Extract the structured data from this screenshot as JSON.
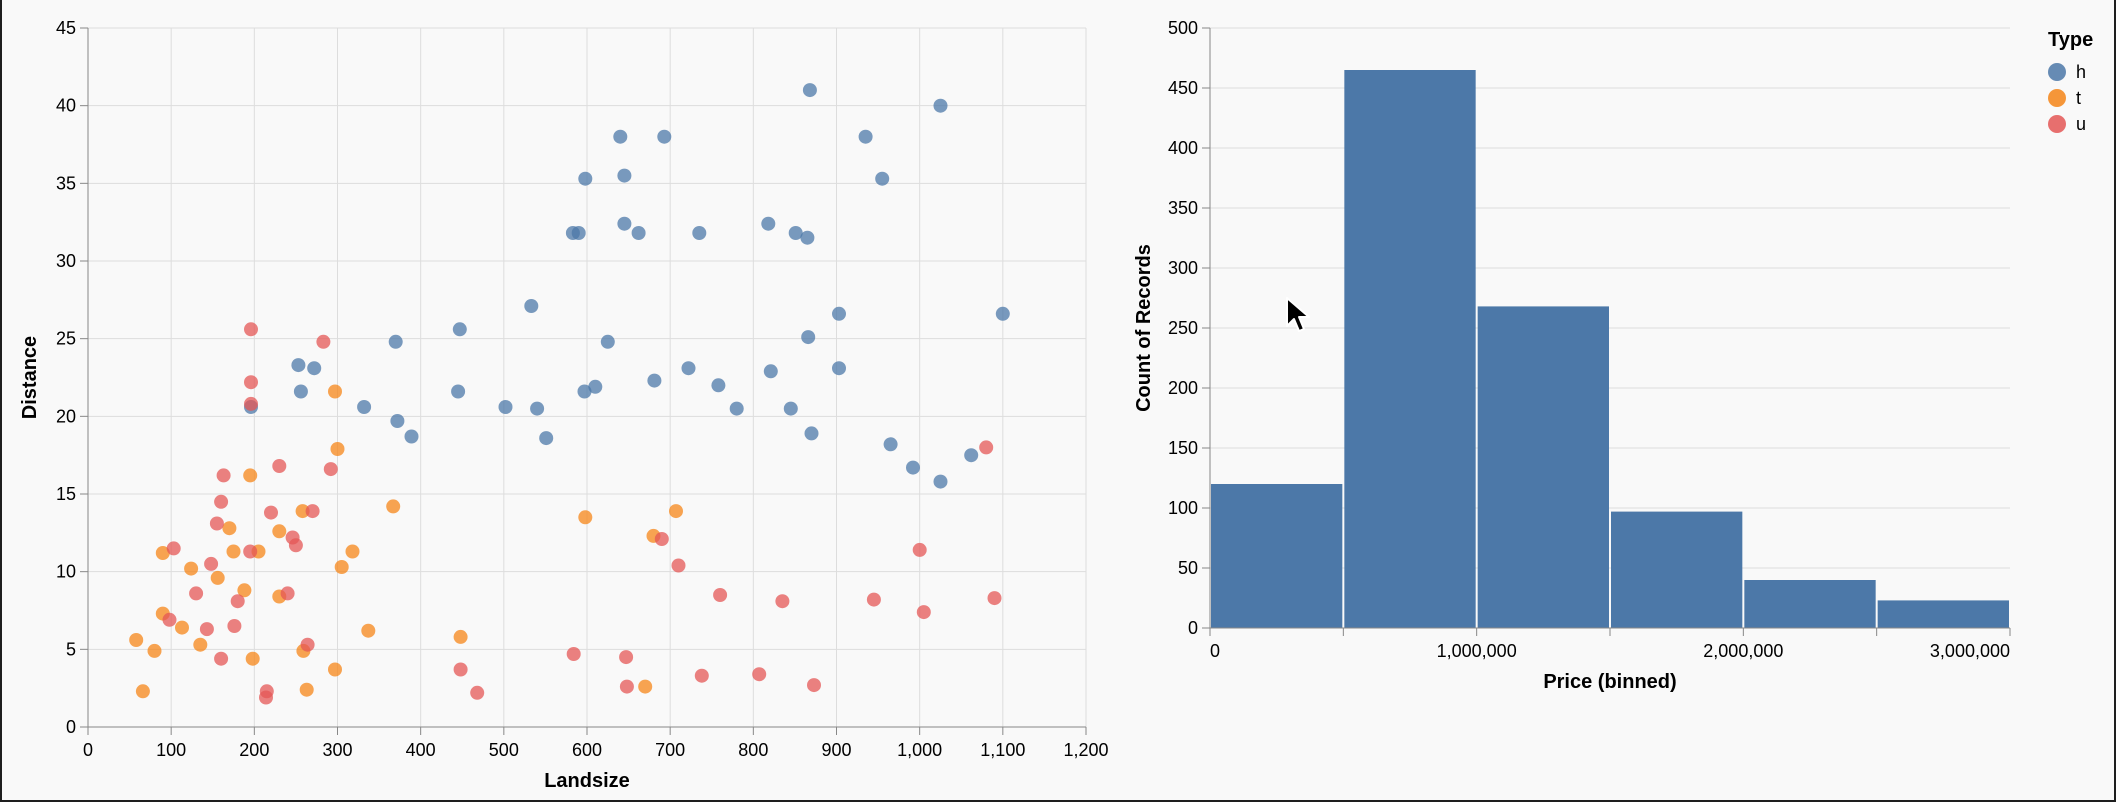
{
  "legend": {
    "title": "Type",
    "items": [
      {
        "label": "h",
        "color": "#4c78a8"
      },
      {
        "label": "t",
        "color": "#f58518"
      },
      {
        "label": "u",
        "color": "#e45756"
      }
    ]
  },
  "chart_data": [
    {
      "type": "scatter",
      "xlabel": "Landsize",
      "ylabel": "Distance",
      "xlim": [
        0,
        1200
      ],
      "ylim": [
        0,
        45
      ],
      "xticks": [
        0,
        100,
        200,
        300,
        400,
        500,
        600,
        700,
        800,
        900,
        1000,
        1100,
        1200
      ],
      "xtick_labels": [
        "0",
        "100",
        "200",
        "300",
        "400",
        "500",
        "600",
        "700",
        "800",
        "900",
        "1,000",
        "1,100",
        "1,200"
      ],
      "yticks": [
        0,
        5,
        10,
        15,
        20,
        25,
        30,
        35,
        40,
        45
      ],
      "ytick_labels": [
        "0",
        "5",
        "10",
        "15",
        "20",
        "25",
        "30",
        "35",
        "40",
        "45"
      ],
      "grid": true,
      "series": [
        {
          "name": "h",
          "color": "#4c78a8",
          "points": [
            [
              868,
              41
            ],
            [
              1025,
              40
            ],
            [
              640,
              38
            ],
            [
              693,
              38
            ],
            [
              935,
              38
            ],
            [
              645,
              35.5
            ],
            [
              598,
              35.3
            ],
            [
              955,
              35.3
            ],
            [
              645,
              32.4
            ],
            [
              818,
              32.4
            ],
            [
              583,
              31.8
            ],
            [
              590,
              31.8
            ],
            [
              662,
              31.8
            ],
            [
              735,
              31.8
            ],
            [
              851,
              31.8
            ],
            [
              865,
              31.5
            ],
            [
              533,
              27.1
            ],
            [
              903,
              26.6
            ],
            [
              1100,
              26.6
            ],
            [
              447,
              25.6
            ],
            [
              370,
              24.8
            ],
            [
              866,
              25.1
            ],
            [
              625,
              24.8
            ],
            [
              253,
              23.3
            ],
            [
              272,
              23.1
            ],
            [
              722,
              23.1
            ],
            [
              903,
              23.1
            ],
            [
              681,
              22.3
            ],
            [
              821,
              22.9
            ],
            [
              758,
              22
            ],
            [
              256,
              21.6
            ],
            [
              445,
              21.6
            ],
            [
              597,
              21.6
            ],
            [
              610,
              21.9
            ],
            [
              196,
              20.6
            ],
            [
              332,
              20.6
            ],
            [
              502,
              20.6
            ],
            [
              540,
              20.5
            ],
            [
              780,
              20.5
            ],
            [
              845,
              20.5
            ],
            [
              372,
              19.7
            ],
            [
              389,
              18.7
            ],
            [
              551,
              18.6
            ],
            [
              870,
              18.9
            ],
            [
              965,
              18.2
            ],
            [
              992,
              16.7
            ],
            [
              1062,
              17.5
            ],
            [
              1025,
              15.8
            ]
          ]
        },
        {
          "name": "t",
          "color": "#f58518",
          "points": [
            [
              297,
              21.6
            ],
            [
              195,
              16.2
            ],
            [
              300,
              17.9
            ],
            [
              367,
              14.2
            ],
            [
              258,
              13.9
            ],
            [
              230,
              12.6
            ],
            [
              90,
              11.2
            ],
            [
              175,
              11.3
            ],
            [
              205,
              11.3
            ],
            [
              318,
              11.3
            ],
            [
              124,
              10.2
            ],
            [
              156,
              9.6
            ],
            [
              188,
              8.8
            ],
            [
              90,
              7.3
            ],
            [
              113,
              6.4
            ],
            [
              135,
              5.3
            ],
            [
              58,
              5.6
            ],
            [
              80,
              4.9
            ],
            [
              198,
              4.4
            ],
            [
              259,
              4.9
            ],
            [
              297,
              3.7
            ],
            [
              66,
              2.3
            ],
            [
              670,
              2.6
            ],
            [
              263,
              2.4
            ],
            [
              707,
              13.9
            ],
            [
              598,
              13.5
            ],
            [
              680,
              12.3
            ],
            [
              230,
              8.4
            ],
            [
              337,
              6.2
            ],
            [
              448,
              5.8
            ],
            [
              170,
              12.8
            ],
            [
              305,
              10.3
            ]
          ]
        },
        {
          "name": "u",
          "color": "#e45756",
          "points": [
            [
              196,
              25.6
            ],
            [
              283,
              24.8
            ],
            [
              196,
              22.2
            ],
            [
              196,
              20.8
            ],
            [
              230,
              16.8
            ],
            [
              292,
              16.6
            ],
            [
              163,
              16.2
            ],
            [
              160,
              14.5
            ],
            [
              155,
              13.1
            ],
            [
              220,
              13.8
            ],
            [
              270,
              13.9
            ],
            [
              246,
              12.2
            ],
            [
              195,
              11.3
            ],
            [
              148,
              10.5
            ],
            [
              103,
              11.5
            ],
            [
              250,
              11.7
            ],
            [
              130,
              8.6
            ],
            [
              180,
              8.1
            ],
            [
              240,
              8.6
            ],
            [
              98,
              6.9
            ],
            [
              143,
              6.3
            ],
            [
              176,
              6.5
            ],
            [
              160,
              4.4
            ],
            [
              264,
              5.3
            ],
            [
              215,
              2.3
            ],
            [
              214,
              1.9
            ],
            [
              448,
              3.7
            ],
            [
              468,
              2.2
            ],
            [
              584,
              4.7
            ],
            [
              647,
              4.5
            ],
            [
              648,
              2.6
            ],
            [
              738,
              3.3
            ],
            [
              807,
              3.4
            ],
            [
              873,
              2.7
            ],
            [
              760,
              8.5
            ],
            [
              690,
              12.1
            ],
            [
              1080,
              18
            ],
            [
              1000,
              11.4
            ],
            [
              1090,
              8.3
            ],
            [
              945,
              8.2
            ],
            [
              1005,
              7.4
            ],
            [
              710,
              10.4
            ],
            [
              835,
              8.1
            ]
          ]
        }
      ]
    },
    {
      "type": "bar",
      "xlabel": "Price (binned)",
      "ylabel": "Count of Records",
      "xlim": [
        0,
        3000000
      ],
      "ylim": [
        0,
        500
      ],
      "xticks": [
        0,
        1000000,
        2000000,
        3000000
      ],
      "xtick_labels": [
        "0",
        "1,000,000",
        "2,000,000",
        "3,000,000"
      ],
      "yticks": [
        0,
        50,
        100,
        150,
        200,
        250,
        300,
        350,
        400,
        450,
        500
      ],
      "ytick_labels": [
        "0",
        "50",
        "100",
        "150",
        "200",
        "250",
        "300",
        "350",
        "400",
        "450",
        "500"
      ],
      "grid": true,
      "color": "#4c78a8",
      "bins": [
        {
          "start": 0,
          "end": 500000,
          "count": 120
        },
        {
          "start": 500000,
          "end": 1000000,
          "count": 465
        },
        {
          "start": 1000000,
          "end": 1500000,
          "count": 268
        },
        {
          "start": 1500000,
          "end": 2000000,
          "count": 97
        },
        {
          "start": 2000000,
          "end": 2500000,
          "count": 40
        },
        {
          "start": 2500000,
          "end": 3000000,
          "count": 23
        }
      ]
    }
  ]
}
